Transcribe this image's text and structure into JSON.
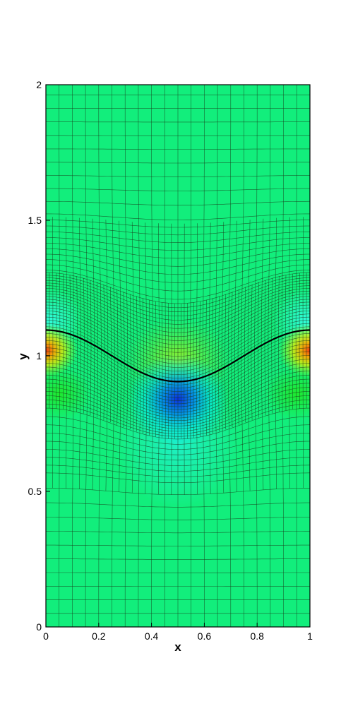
{
  "chart_data": {
    "type": "heatmap",
    "title": "",
    "xlabel": "x",
    "ylabel": "y",
    "xlim": [
      0,
      1
    ],
    "ylim": [
      0,
      2
    ],
    "x_ticks": [
      0,
      0.2,
      0.4,
      0.6,
      0.8,
      1
    ],
    "x_tick_labels": [
      "0",
      "0.2",
      "0.4",
      "0.6",
      "0.8",
      "1"
    ],
    "y_ticks": [
      0,
      0.5,
      1,
      1.5,
      2
    ],
    "y_tick_labels": [
      "0",
      "0.5",
      "1",
      "1.5",
      "2"
    ],
    "interface": {
      "name": "interface-curve",
      "y_mean": 1.0,
      "amplitude": 0.095,
      "shape": "cos(2*pi*x)",
      "color": "#000000"
    },
    "mesh": "quadrilateral adaptive grid, refined near the interface",
    "colormap": {
      "background": "#12ee7c",
      "peak_low": "#1133ee",
      "peak_high": "#ee3311",
      "stops": [
        "#0000cc",
        "#00ffff",
        "#00ff99",
        "#00ff33",
        "#aaff00",
        "#ffff00",
        "#ff8000",
        "#ff0000"
      ]
    }
  }
}
